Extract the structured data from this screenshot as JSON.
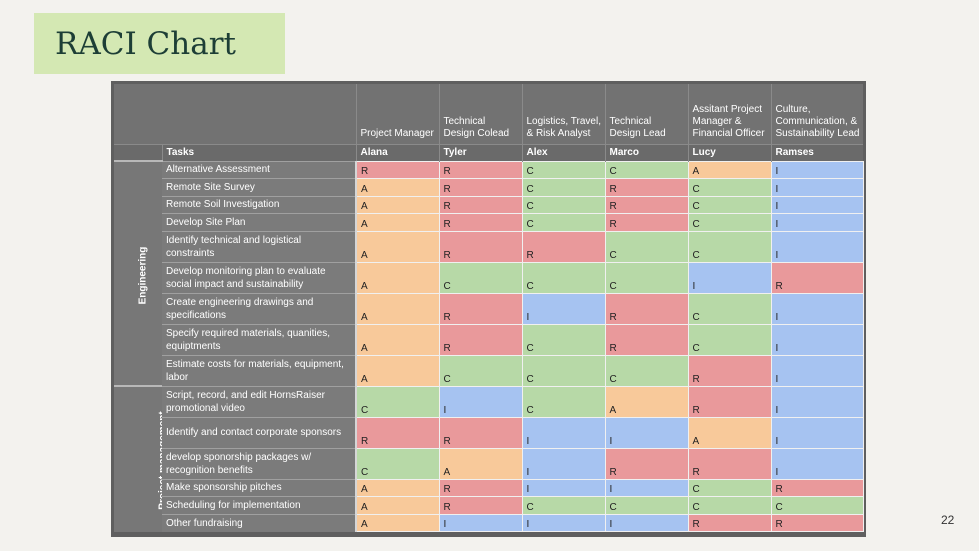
{
  "slide": {
    "title": "RACI Chart",
    "page_number": "22"
  },
  "colors": {
    "R": "#e9999b",
    "A": "#f8c99a",
    "C": "#b7d9a7",
    "I": "#a6c3f1"
  },
  "table": {
    "tasks_header": "Tasks",
    "roles": [
      {
        "title": "Project Manager",
        "name": "Alana"
      },
      {
        "title": "Technical Design Colead",
        "name": "Tyler"
      },
      {
        "title": "Logistics, Travel, & Risk Analyst",
        "name": "Alex"
      },
      {
        "title": "Technical Design Lead",
        "name": "Marco"
      },
      {
        "title": "Assitant Project Manager & Financial Officer",
        "name": "Lucy"
      },
      {
        "title": "Culture, Communication, & Sustainability Lead",
        "name": "Ramses"
      }
    ],
    "groups": [
      {
        "name": "Engineering",
        "rows": [
          {
            "task": "Alternative Assessment",
            "tall": false,
            "values": [
              "R",
              "R",
              "C",
              "C",
              "A",
              "I"
            ]
          },
          {
            "task": "Remote Site Survey",
            "tall": false,
            "values": [
              "A",
              "R",
              "C",
              "R",
              "C",
              "I"
            ]
          },
          {
            "task": "Remote Soil Investigation",
            "tall": false,
            "values": [
              "A",
              "R",
              "C",
              "R",
              "C",
              "I"
            ]
          },
          {
            "task": "Develop Site Plan",
            "tall": false,
            "values": [
              "A",
              "R",
              "C",
              "R",
              "C",
              "I"
            ]
          },
          {
            "task": "Identify technical and logistical constraints",
            "tall": true,
            "values": [
              "A",
              "R",
              "R",
              "C",
              "C",
              "I"
            ]
          },
          {
            "task": "Develop monitoring plan to evaluate social impact and sustainability",
            "tall": true,
            "values": [
              "A",
              "C",
              "C",
              "C",
              "I",
              "R"
            ]
          },
          {
            "task": "Create engineering drawings and specifications",
            "tall": true,
            "values": [
              "A",
              "R",
              "I",
              "R",
              "C",
              "I"
            ]
          },
          {
            "task": "Specify required materials, quanities, equiptments",
            "tall": true,
            "values": [
              "A",
              "R",
              "C",
              "R",
              "C",
              "I"
            ]
          },
          {
            "task": "Estimate costs for materials, equipment, labor",
            "tall": true,
            "values": [
              "A",
              "C",
              "C",
              "C",
              "R",
              "I"
            ]
          }
        ]
      },
      {
        "name": "Project management",
        "rows": [
          {
            "task": "Script, record, and edit HornsRaiser promotional video",
            "tall": true,
            "values": [
              "C",
              "I",
              "C",
              "A",
              "R",
              "I"
            ]
          },
          {
            "task": "Identify and contact corporate sponsors",
            "tall": true,
            "values": [
              "R",
              "R",
              "I",
              "I",
              "A",
              "I"
            ]
          },
          {
            "task": "develop sponorship packages w/ recognition benefits",
            "tall": true,
            "values": [
              "C",
              "A",
              "I",
              "R",
              "R",
              "I"
            ]
          },
          {
            "task": "Make sponsorship pitches",
            "tall": false,
            "values": [
              "A",
              "R",
              "I",
              "I",
              "C",
              "R"
            ]
          },
          {
            "task": "Scheduling for implementation",
            "tall": false,
            "values": [
              "A",
              "R",
              "C",
              "C",
              "C",
              "C"
            ]
          },
          {
            "task": "Other fundraising",
            "tall": false,
            "values": [
              "A",
              "I",
              "I",
              "I",
              "R",
              "R"
            ]
          }
        ]
      }
    ]
  }
}
